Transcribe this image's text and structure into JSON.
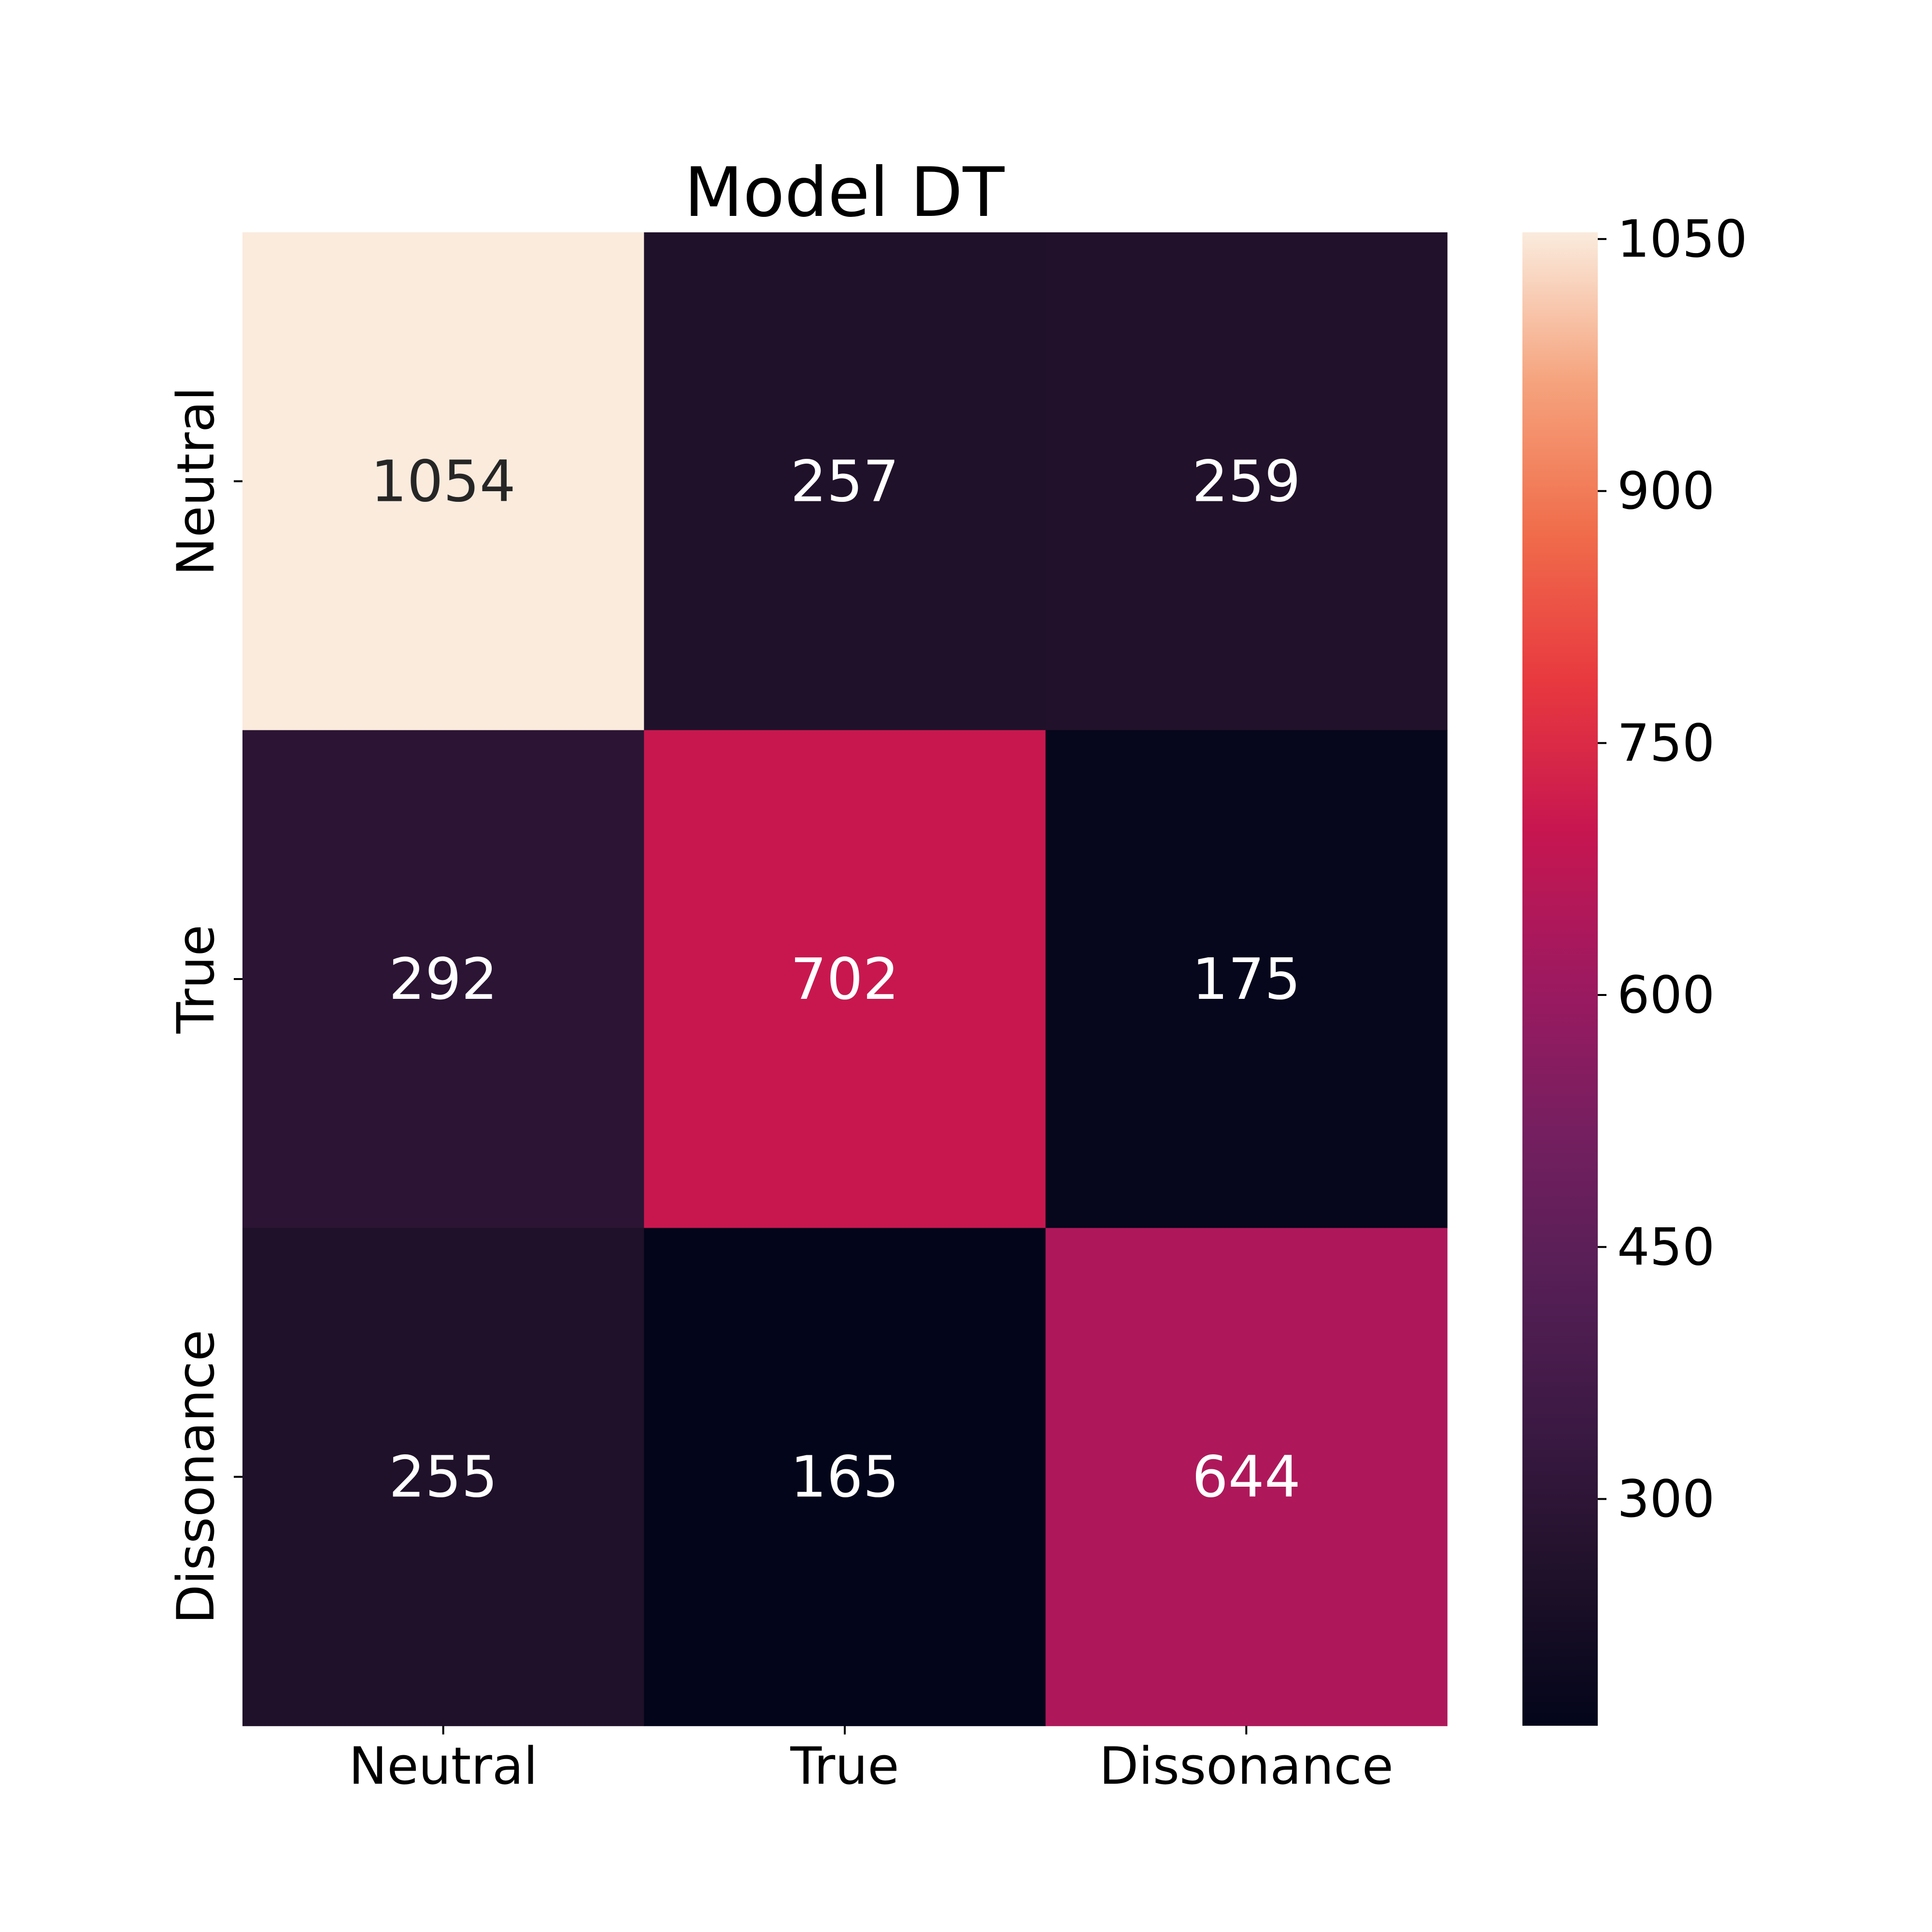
{
  "chart_data": {
    "type": "heatmap",
    "title": "Model DT",
    "xlabel": "",
    "ylabel": "",
    "x_categories": [
      "Neutral",
      "True",
      "Dissonance"
    ],
    "y_categories": [
      "Neutral",
      "True",
      "Dissonance"
    ],
    "values": [
      [
        1054,
        257,
        259
      ],
      [
        292,
        702,
        175
      ],
      [
        255,
        165,
        644
      ]
    ],
    "colorbar": {
      "min": 165,
      "max": 1054,
      "ticks": [
        300,
        450,
        600,
        750,
        900,
        1050
      ],
      "colormap": "rocket"
    },
    "text_colors": {
      "on_dark": "#ffffff",
      "on_light": "#262626"
    }
  }
}
